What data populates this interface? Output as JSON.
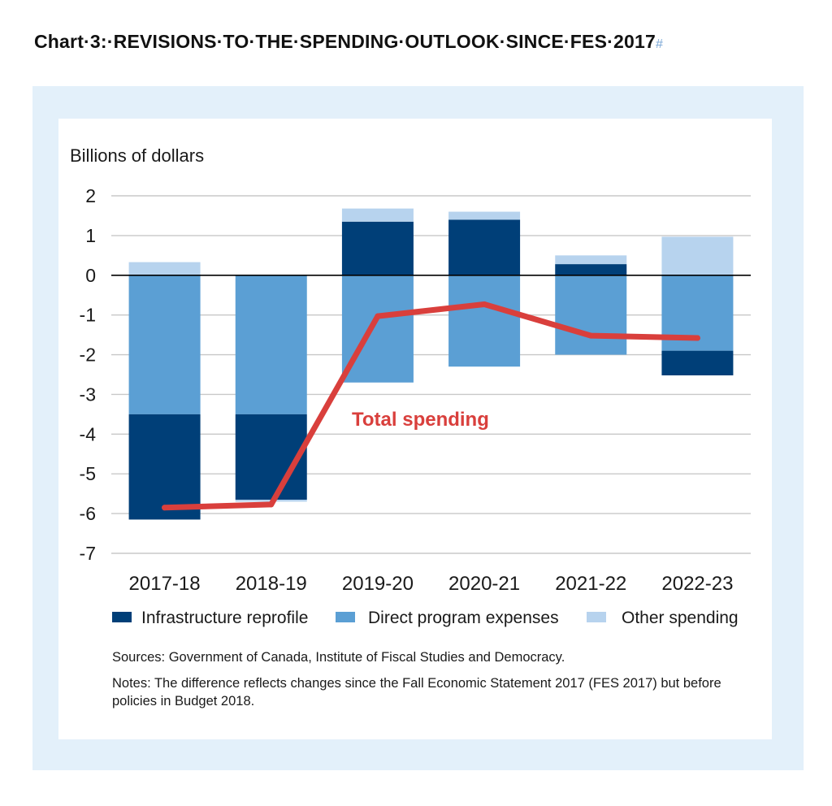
{
  "page": {
    "title_prefix": "Chart·3:·",
    "title_main": "REVISIONS·TO·THE·SPENDING·OUTLOOK·SINCE·FES·2017",
    "title_mark": "#",
    "sources": "Sources: Government of Canada, Institute of Fiscal Studies and Democracy.",
    "notes": "Notes: The difference reflects changes since the Fall Economic Statement 2017 (FES 2017) but before policies in Budget 2018."
  },
  "colors": {
    "infrastructure": "#003f78",
    "direct": "#5b9fd4",
    "other": "#b7d3ee",
    "total": "#d93f3c",
    "grid": "#c8c8c8",
    "zero": "#000000",
    "panel": "#e3f0fa"
  },
  "chart_data": {
    "type": "bar",
    "stacked": true,
    "ylabel": "Billions of dollars",
    "ylim": [
      -7,
      2
    ],
    "yticks": [
      "2",
      "1",
      "0",
      "-1",
      "-2",
      "-3",
      "-4",
      "-5",
      "-6",
      "-7"
    ],
    "grid": true,
    "legend_placement": "bottom",
    "categories": [
      "2017-18",
      "2018-19",
      "2019-20",
      "2020-21",
      "2021-22",
      "2022-23"
    ],
    "series": [
      {
        "name": "Infrastructure reprofile",
        "type": "bar",
        "values": [
          -2.65,
          -2.15,
          1.35,
          1.4,
          0.28,
          -0.62
        ]
      },
      {
        "name": "Direct program expenses",
        "type": "bar",
        "values": [
          -3.5,
          -3.5,
          -2.7,
          -2.3,
          -2.0,
          -1.9
        ]
      },
      {
        "name": "Other spending",
        "type": "bar",
        "values": [
          0.33,
          -0.05,
          0.33,
          0.2,
          0.22,
          0.97
        ]
      },
      {
        "name": "Total spending",
        "type": "line",
        "values": [
          -5.85,
          -5.77,
          -1.03,
          -0.73,
          -1.52,
          -1.58
        ]
      }
    ],
    "annotations": [
      {
        "text": "Total spending",
        "series": "Total spending"
      }
    ]
  }
}
